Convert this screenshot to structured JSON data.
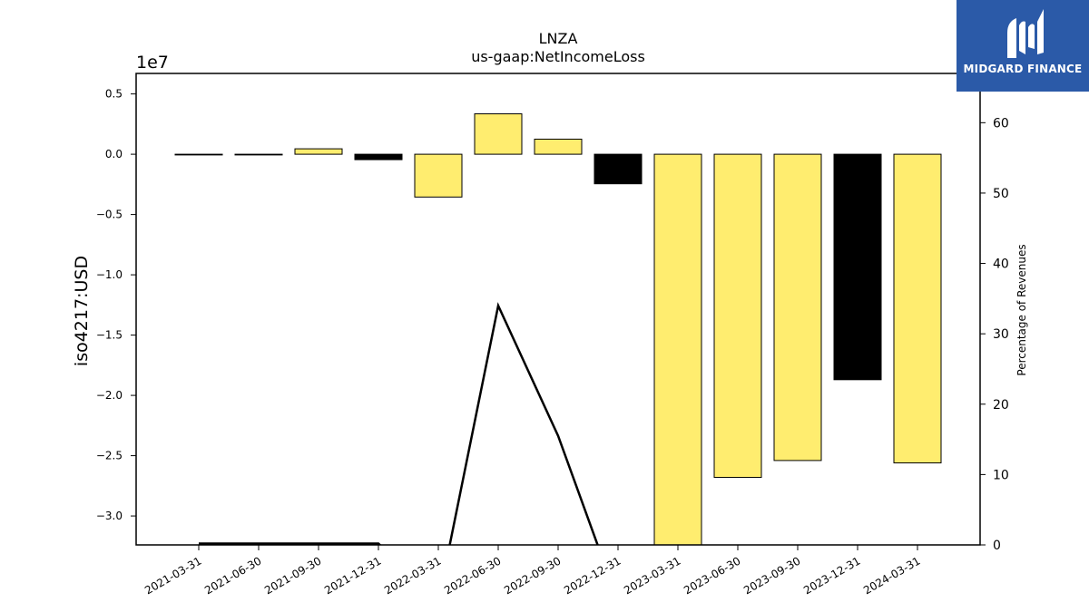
{
  "chart_data": {
    "type": "bar",
    "title": "LNZA",
    "subtitle": "us-gaap:NetIncomeLoss",
    "ylabel": "iso4217:USD",
    "y_multiplier_label": "1e7",
    "y2label": "Percentage of Revenues",
    "categories": [
      "2021-03-31",
      "2021-06-30",
      "2021-09-30",
      "2021-12-31",
      "2022-03-31",
      "2022-06-30",
      "2022-09-30",
      "2022-12-31",
      "2023-03-31",
      "2023-06-30",
      "2023-09-30",
      "2023-12-31",
      "2024-03-31"
    ],
    "values": [
      -20000,
      -20000,
      450000,
      -450000,
      -3550000,
      3350000,
      1250000,
      -2450000,
      -33500000,
      -26800000,
      -25400000,
      -18700000,
      -25600000
    ],
    "bar_colors": [
      "#ffed6f",
      "#ffed6f",
      "#ffed6f",
      "#000000",
      "#ffed6f",
      "#ffed6f",
      "#ffed6f",
      "#000000",
      "#ffed6f",
      "#ffed6f",
      "#ffed6f",
      "#000000",
      "#ffed6f"
    ],
    "ylim": [
      -32400000,
      6700000
    ],
    "yticks": [
      0.5,
      0.0,
      -0.5,
      -1.0,
      -1.5,
      -2.0,
      -2.5,
      -3.0
    ],
    "ytick_labels": [
      "0.5",
      "0.0",
      "−0.5",
      "−1.0",
      "−1.5",
      "−2.0",
      "−2.5",
      "−3.0"
    ],
    "y2lim": [
      0,
      67
    ],
    "y2ticks": [
      0,
      10,
      20,
      30,
      40,
      50,
      60
    ],
    "line_series": {
      "name": "Percentage of Revenues",
      "values": [
        0.2,
        0.2,
        0.2,
        0.2,
        -8,
        34,
        15.5,
        -8,
        null,
        null,
        null,
        null,
        null
      ]
    },
    "grid": false,
    "colors": {
      "positive_bar": "#ffed6f",
      "negative_bar": "#000000",
      "line": "#000000"
    }
  },
  "logo": {
    "text": "MIDGARD FINANCE",
    "icon": "midgard-logo-icon",
    "color": "#2b5aa8"
  }
}
